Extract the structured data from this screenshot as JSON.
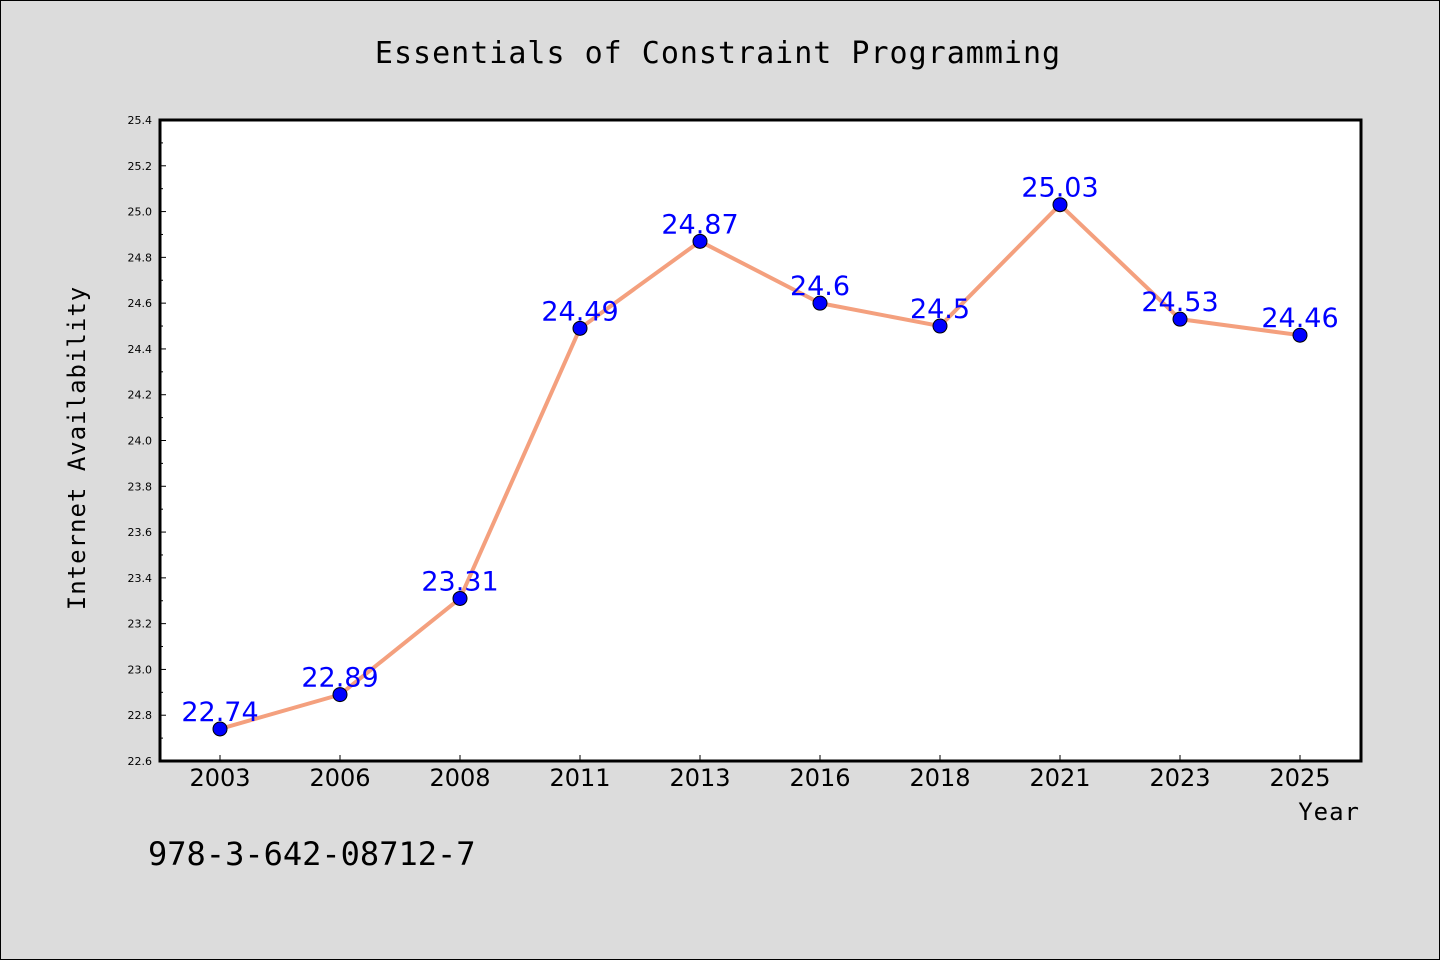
{
  "chart_data": {
    "type": "line",
    "title": "Essentials of Constraint Programming",
    "xlabel": "Year",
    "ylabel": "Internet Availability",
    "categories": [
      "2003",
      "2006",
      "2008",
      "2011",
      "2013",
      "2016",
      "2018",
      "2021",
      "2023",
      "2025"
    ],
    "series": [
      {
        "values": [
          22.74,
          22.89,
          23.31,
          24.49,
          24.87,
          24.6,
          24.5,
          25.03,
          24.53,
          24.46
        ],
        "labels": [
          "22.74",
          "22.89",
          "23.31",
          "24.49",
          "24.87",
          "24.6",
          "24.5",
          "25.03",
          "24.53",
          "24.46"
        ]
      }
    ],
    "ylim": [
      22.6,
      25.4
    ],
    "yticks": [
      "22.6",
      "22.8",
      "23.0",
      "23.2",
      "23.4",
      "23.6",
      "23.8",
      "24.0",
      "24.2",
      "24.4",
      "24.6",
      "24.8",
      "25.0",
      "25.2",
      "25.4"
    ],
    "grid": false,
    "line_color": "#f4a07e",
    "marker_color": "#0000ff",
    "label_color": "#0000ff",
    "plot_background": "#ffffff",
    "figure_background": "#dcdcdc"
  },
  "footer": {
    "isbn": "978-3-642-08712-7"
  }
}
